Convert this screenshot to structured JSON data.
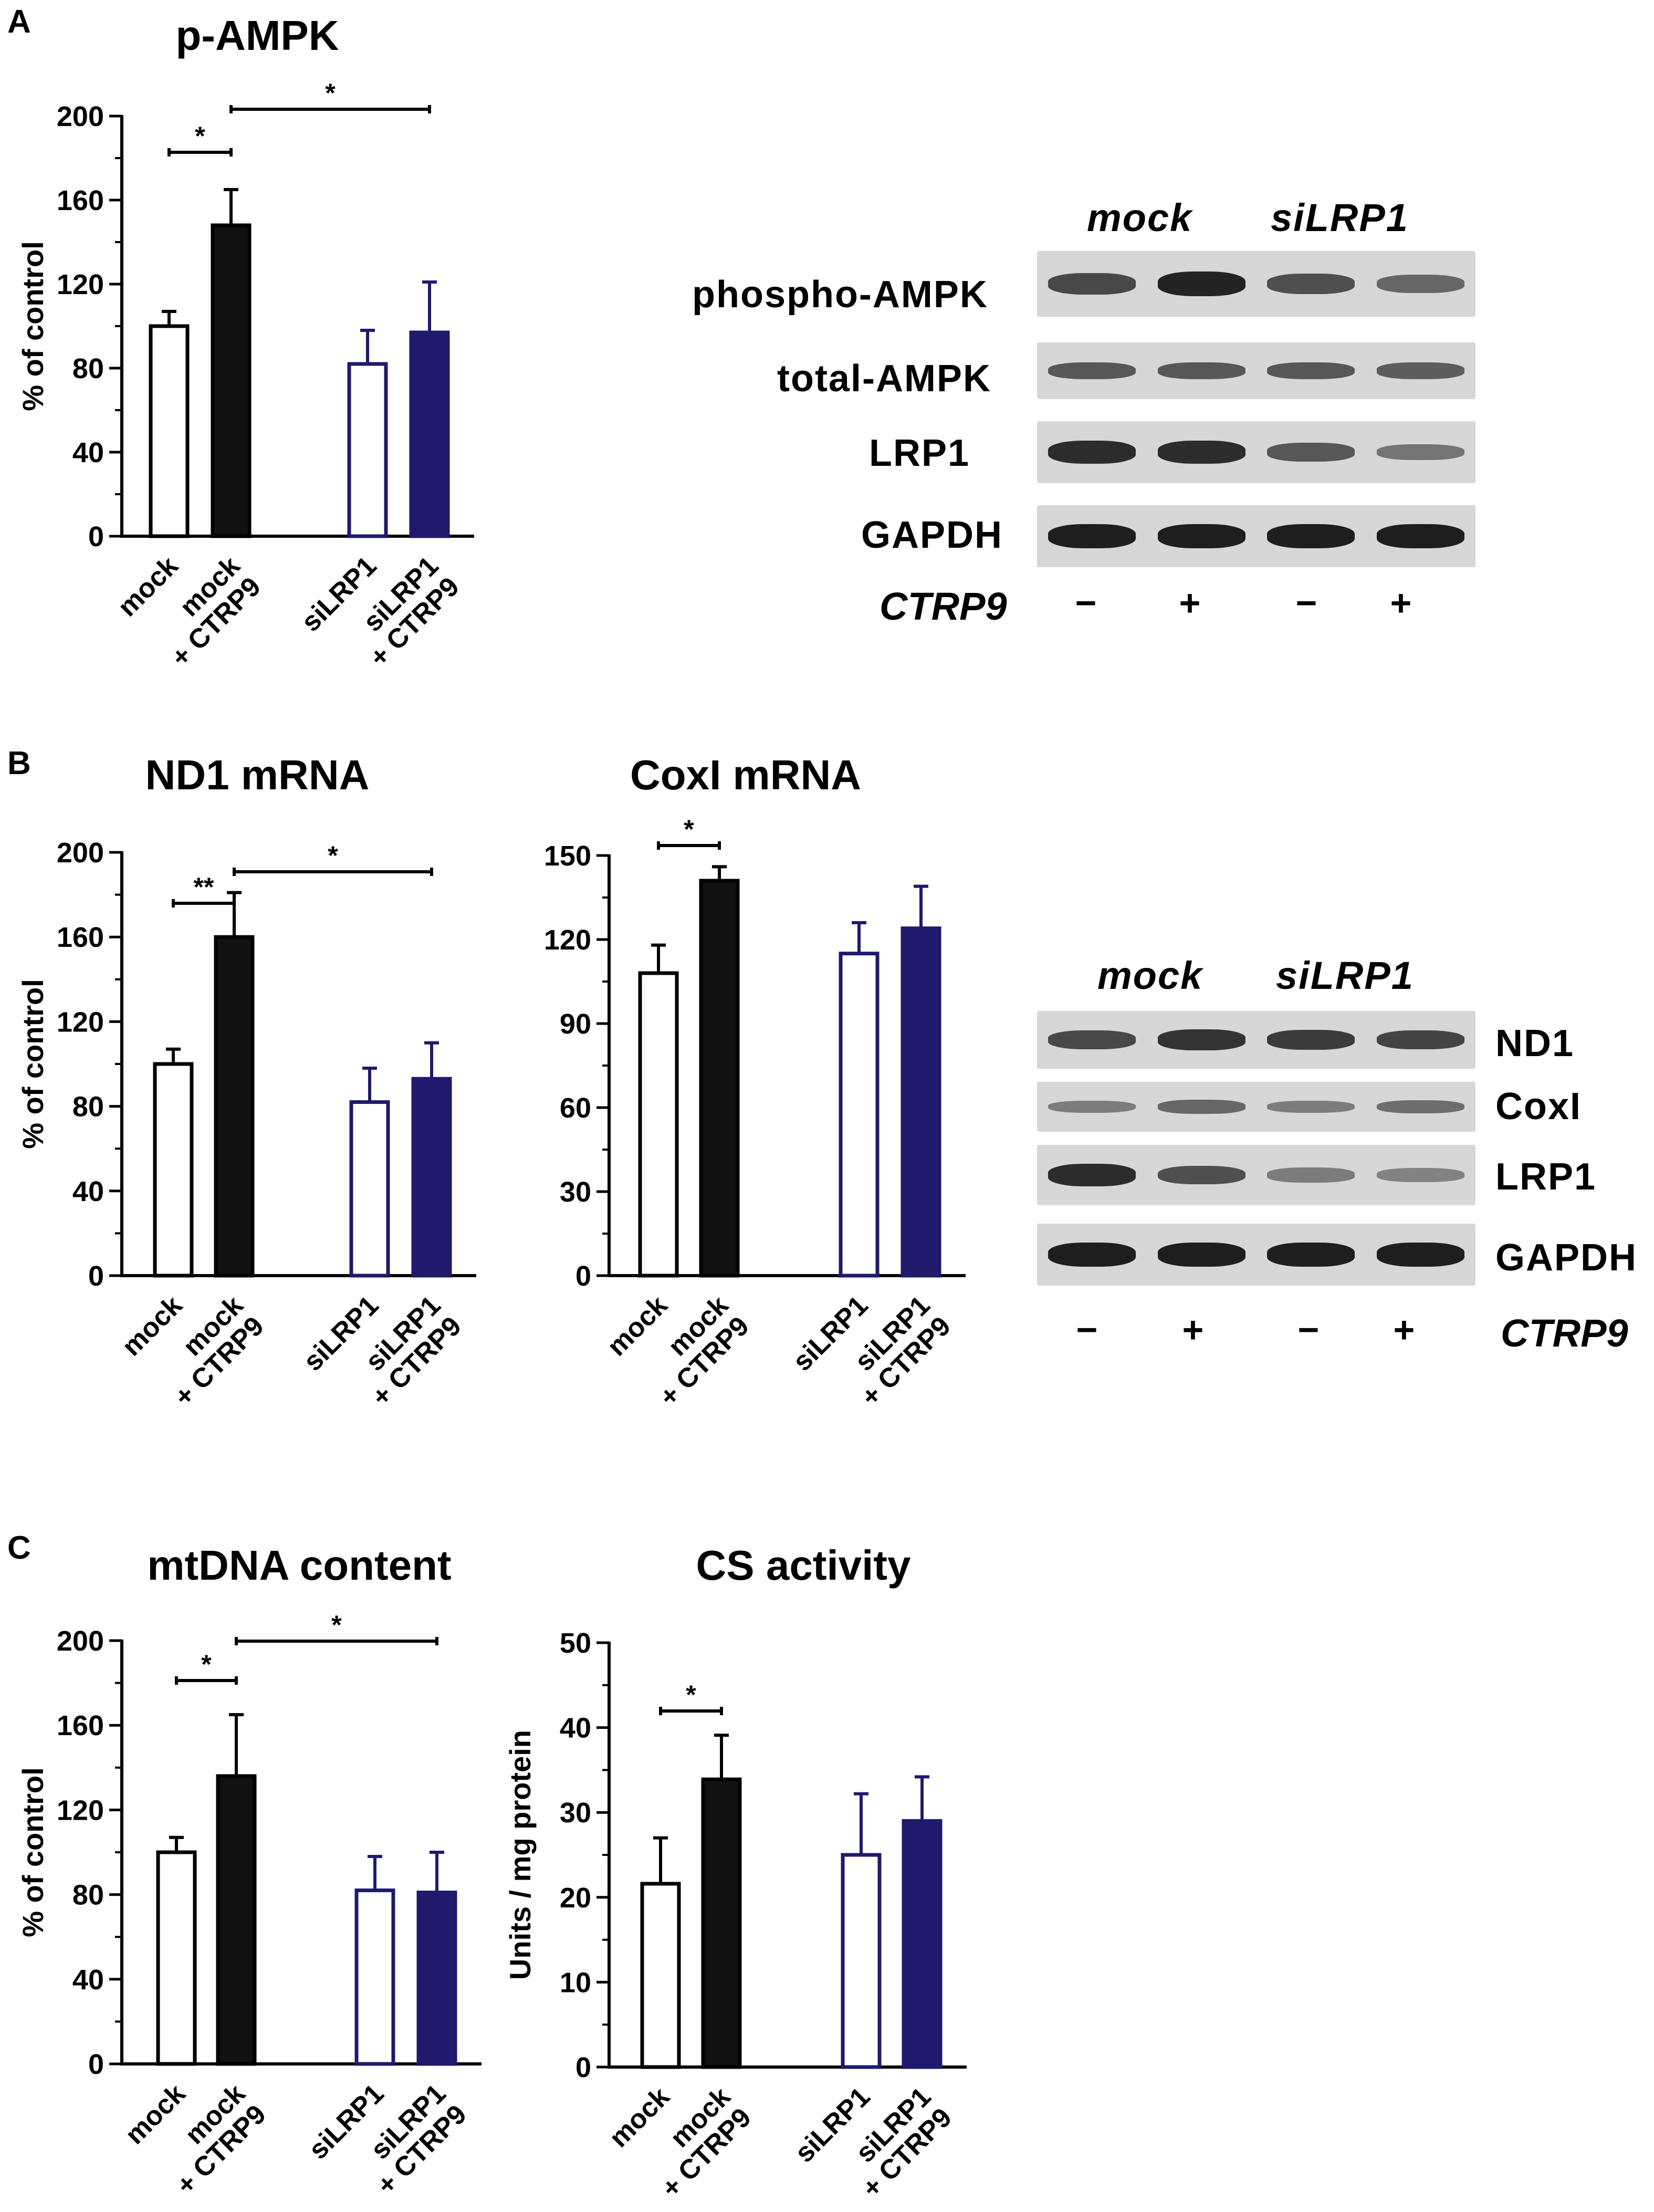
{
  "panels": [
    "A",
    "B",
    "C"
  ],
  "chart_data": [
    {
      "type": "bar",
      "title": "p-AMPK",
      "ylabel": "% of control",
      "ylim": [
        0,
        200
      ],
      "yticks": [
        "0",
        "40",
        "80",
        "120",
        "160",
        "200"
      ],
      "categories": [
        "mock",
        "mock\n+ CTRP9",
        "siLRP1",
        "siLRP1\n+ CTRP9"
      ],
      "values": [
        100,
        148,
        82,
        97
      ],
      "errors": [
        7,
        17,
        16,
        24
      ],
      "fills": [
        "#ffffff",
        "#111111",
        "#ffffff",
        "#1f1a6b"
      ],
      "strokes": [
        "#000000",
        "#000000",
        "#1f1a6b",
        "#1f1a6b"
      ],
      "significance": [
        {
          "from": 0,
          "to": 1,
          "label": "*"
        },
        {
          "from": 1,
          "to": 3,
          "label": "*"
        }
      ]
    },
    {
      "type": "bar",
      "title": "ND1 mRNA",
      "ylabel": "% of control",
      "ylim": [
        0,
        200
      ],
      "yticks": [
        "0",
        "40",
        "80",
        "120",
        "160",
        "200"
      ],
      "categories": [
        "mock",
        "mock\n+ CTRP9",
        "siLRP1",
        "siLRP1\n+ CTRP9"
      ],
      "values": [
        100,
        160,
        82,
        93
      ],
      "errors": [
        7,
        21,
        16,
        17
      ],
      "fills": [
        "#ffffff",
        "#111111",
        "#ffffff",
        "#1f1a6b"
      ],
      "strokes": [
        "#000000",
        "#000000",
        "#1f1a6b",
        "#1f1a6b"
      ],
      "significance": [
        {
          "from": 0,
          "to": 1,
          "label": "**"
        },
        {
          "from": 1,
          "to": 3,
          "label": "*"
        }
      ]
    },
    {
      "type": "bar",
      "title": "CoxI mRNA",
      "ylabel": "",
      "ylim": [
        0,
        150
      ],
      "yticks": [
        "0",
        "30",
        "60",
        "90",
        "120",
        "150"
      ],
      "categories": [
        "mock",
        "mock\n+ CTRP9",
        "siLRP1",
        "siLRP1\n+ CTRP9"
      ],
      "values": [
        108,
        141,
        115,
        124
      ],
      "errors": [
        10,
        5,
        11,
        15
      ],
      "fills": [
        "#ffffff",
        "#111111",
        "#ffffff",
        "#1f1a6b"
      ],
      "strokes": [
        "#000000",
        "#000000",
        "#1f1a6b",
        "#1f1a6b"
      ],
      "significance": [
        {
          "from": 0,
          "to": 1,
          "label": "*"
        }
      ]
    },
    {
      "type": "bar",
      "title": "mtDNA content",
      "ylabel": "% of control",
      "ylim": [
        0,
        200
      ],
      "yticks": [
        "0",
        "40",
        "80",
        "120",
        "160",
        "200"
      ],
      "categories": [
        "mock",
        "mock\n+ CTRP9",
        "siLRP1",
        "siLRP1\n+ CTRP9"
      ],
      "values": [
        100,
        136,
        82,
        81
      ],
      "errors": [
        7,
        29,
        16,
        19
      ],
      "fills": [
        "#ffffff",
        "#111111",
        "#ffffff",
        "#1f1a6b"
      ],
      "strokes": [
        "#000000",
        "#000000",
        "#1f1a6b",
        "#1f1a6b"
      ],
      "significance": [
        {
          "from": 0,
          "to": 1,
          "label": "*"
        },
        {
          "from": 1,
          "to": 3,
          "label": "*"
        }
      ]
    },
    {
      "type": "bar",
      "title": "CS activity",
      "ylabel": "Units / mg protein",
      "ylim": [
        0,
        50
      ],
      "yticks": [
        "0",
        "10",
        "20",
        "30",
        "40",
        "50"
      ],
      "categories": [
        "mock",
        "mock\n+ CTRP9",
        "siLRP1",
        "siLRP1\n+ CTRP9"
      ],
      "values": [
        21.6,
        33.9,
        25,
        29
      ],
      "errors": [
        5.4,
        5.2,
        7.2,
        5.2
      ],
      "fills": [
        "#ffffff",
        "#111111",
        "#ffffff",
        "#1f1a6b"
      ],
      "strokes": [
        "#000000",
        "#000000",
        "#1f1a6b",
        "#1f1a6b"
      ],
      "significance": [
        {
          "from": 0,
          "to": 1,
          "label": "*"
        }
      ]
    }
  ],
  "blots": {
    "a": {
      "groups": [
        "mock",
        "siLRP1"
      ],
      "rows": [
        {
          "label": "phospho-AMPK",
          "intensity": [
            0.65,
            0.9,
            0.6,
            0.45
          ]
        },
        {
          "label": "total-AMPK",
          "intensity": [
            0.55,
            0.55,
            0.55,
            0.5
          ]
        },
        {
          "label": "LRP1",
          "intensity": [
            0.85,
            0.85,
            0.55,
            0.35
          ]
        },
        {
          "label": "GAPDH",
          "intensity": [
            0.95,
            0.95,
            0.95,
            0.95
          ]
        }
      ],
      "treatment_label": "CTRP9",
      "treatments": [
        "−",
        "+",
        "−",
        "+"
      ]
    },
    "b": {
      "groups": [
        "mock",
        "siLRP1"
      ],
      "rows": [
        {
          "label": "ND1",
          "intensity": [
            0.65,
            0.8,
            0.75,
            0.7
          ]
        },
        {
          "label": "CoxI",
          "intensity": [
            0.3,
            0.45,
            0.3,
            0.4
          ]
        },
        {
          "label": "LRP1",
          "intensity": [
            0.85,
            0.6,
            0.3,
            0.25
          ]
        },
        {
          "label": "GAPDH",
          "intensity": [
            0.95,
            0.95,
            0.95,
            0.95
          ]
        }
      ],
      "treatment_label": "CTRP9",
      "treatments": [
        "−",
        "+",
        "−",
        "+"
      ]
    }
  }
}
